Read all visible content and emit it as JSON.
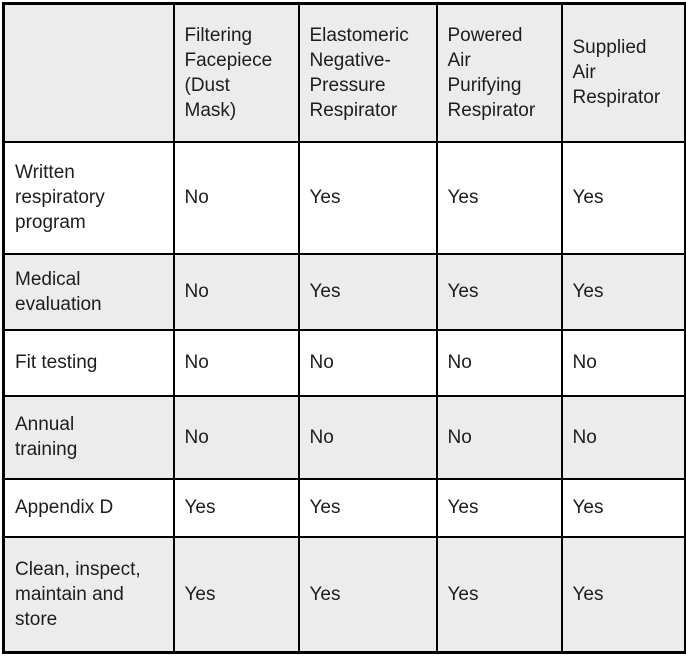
{
  "colors": {
    "header_bg": "#ececec",
    "row_bg": "#ffffff",
    "row_alt_bg": "#ececec",
    "border": "#000000",
    "text": "#1d1d1d"
  },
  "table": {
    "corner_label": "",
    "columns": [
      {
        "label": "Filtering\nFacepiece\n(Dust\nMask)"
      },
      {
        "label": "Elastomeric\nNegative-\nPressure\nRespirator"
      },
      {
        "label": "Powered\nAir\nPurifying\nRespirator"
      },
      {
        "label": "Supplied\nAir\nRespirator"
      }
    ],
    "rows": [
      {
        "label": "Written\nrespiratory\nprogram",
        "values": [
          "No",
          "Yes",
          "Yes",
          "Yes"
        ]
      },
      {
        "label": "Medical\nevaluation",
        "values": [
          "No",
          "Yes",
          "Yes",
          "Yes"
        ]
      },
      {
        "label": "Fit testing",
        "values": [
          "No",
          "No",
          "No",
          "No"
        ]
      },
      {
        "label": "Annual\ntraining",
        "values": [
          "No",
          "No",
          "No",
          "No"
        ]
      },
      {
        "label": "Appendix D",
        "values": [
          "Yes",
          "Yes",
          "Yes",
          "Yes"
        ]
      },
      {
        "label": "Clean, inspect,\nmaintain and\nstore",
        "values": [
          "Yes",
          "Yes",
          "Yes",
          "Yes"
        ]
      }
    ]
  },
  "chart_data": {
    "type": "table",
    "columns": [
      "",
      "Filtering Facepiece (Dust Mask)",
      "Elastomeric Negative-Pressure Respirator",
      "Powered Air Purifying Respirator",
      "Supplied Air Respirator"
    ],
    "rows": [
      [
        "Written respiratory program",
        "No",
        "Yes",
        "Yes",
        "Yes"
      ],
      [
        "Medical evaluation",
        "No",
        "Yes",
        "Yes",
        "Yes"
      ],
      [
        "Fit testing",
        "No",
        "No",
        "No",
        "No"
      ],
      [
        "Annual training",
        "No",
        "No",
        "No",
        "No"
      ],
      [
        "Appendix D",
        "Yes",
        "Yes",
        "Yes",
        "Yes"
      ],
      [
        "Clean, inspect, maintain and store",
        "Yes",
        "Yes",
        "Yes",
        "Yes"
      ]
    ],
    "layout": {
      "header_row_shaded": true,
      "body_rows_alternate_shading": true,
      "grid": true
    }
  }
}
